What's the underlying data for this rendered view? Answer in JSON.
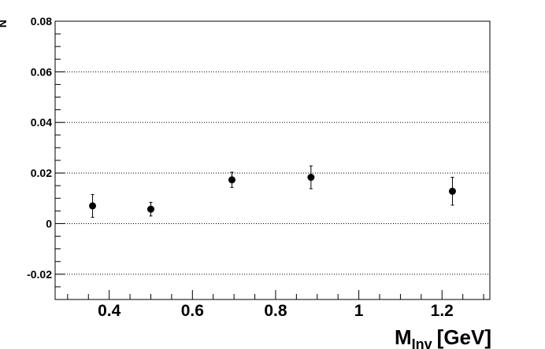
{
  "chart_data": {
    "type": "scatter",
    "title": "",
    "xlabel": "M",
    "xlabel_subscript": "Inv",
    "xlabel_unit": "[GeV]",
    "ylabel": "N",
    "xlim": [
      0.27,
      1.315
    ],
    "ylim": [
      -0.03,
      0.08
    ],
    "grid": "horizontal dotted at major y ticks",
    "x_ticks": [
      0.4,
      0.6,
      0.8,
      1,
      1.2
    ],
    "x_tick_labels": [
      "0.4",
      "0.6",
      "0.8",
      "1",
      "1.2"
    ],
    "y_ticks": [
      -0.02,
      0,
      0.02,
      0.04,
      0.06,
      0.08
    ],
    "y_tick_labels": [
      "-0.02",
      "0",
      "0.02",
      "0.04",
      "0.06",
      "0.08"
    ],
    "series": [
      {
        "x": [
          0.36,
          0.5,
          0.695,
          0.885,
          1.225
        ],
        "y": [
          0.007,
          0.0057,
          0.0173,
          0.0183,
          0.0128
        ],
        "err": [
          0.0045,
          0.0027,
          0.003,
          0.0045,
          0.0055
        ]
      }
    ],
    "colors": {
      "marker": "#000000",
      "grid": "#000000",
      "frame": "#000000"
    }
  }
}
